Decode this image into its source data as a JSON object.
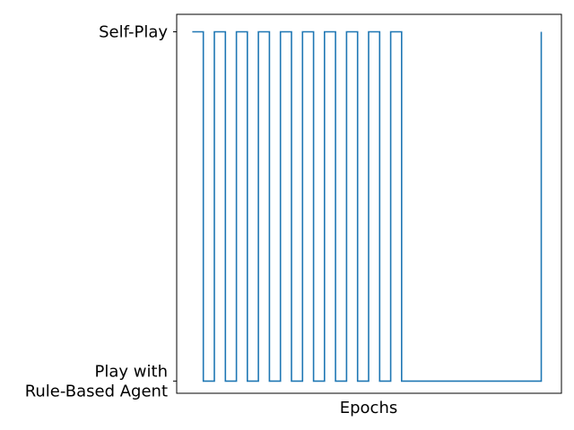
{
  "chart_data": {
    "type": "line",
    "title": "",
    "xlabel": "Epochs",
    "ylabel": "",
    "xticks": [],
    "yticks": [
      {
        "value": 0,
        "lines": [
          "Play with",
          "Rule-Based Agent"
        ]
      },
      {
        "value": 1,
        "lines": [
          "Self-Play"
        ]
      }
    ],
    "ylim": [
      -0.035,
      1.05
    ],
    "xlim": [
      -8.5,
      201
    ],
    "grid": false,
    "legend": "none",
    "series": [
      {
        "color": "#1f77b4",
        "step": true,
        "x": [
          0,
          6,
          12,
          18,
          24,
          30,
          36,
          42,
          48,
          54,
          60,
          66,
          72,
          78,
          84,
          90,
          96,
          102,
          108,
          114,
          190
        ],
        "y": [
          1,
          0,
          1,
          0,
          1,
          0,
          1,
          0,
          1,
          0,
          1,
          0,
          1,
          0,
          1,
          0,
          1,
          0,
          1,
          0,
          1
        ]
      }
    ]
  }
}
